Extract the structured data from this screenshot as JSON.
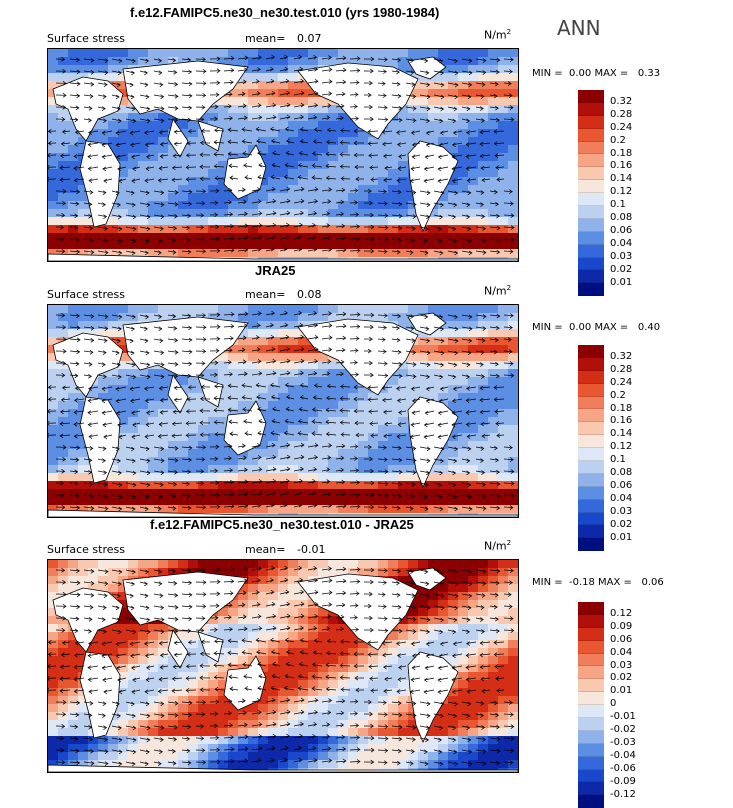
{
  "annual_label": "ANN",
  "units_text": "N/m",
  "units_exp": "2",
  "panels": [
    {
      "title": "f.e12.FAMIPC5.ne30_ne30.test.010 (yrs 1980-1984)",
      "var_label": "Surface stress",
      "mean_label": "mean=",
      "mean_value": "0.07",
      "min_label": "MIN =",
      "min_value": "0.00",
      "max_label": "MAX =",
      "max_value": "0.33",
      "colorbar": [
        "0.32",
        "0.28",
        "0.24",
        "0.2",
        "0.18",
        "0.16",
        "0.14",
        "0.12",
        "0.1",
        "0.08",
        "0.06",
        "0.04",
        "0.03",
        "0.02",
        "0.01"
      ],
      "colors": [
        "#8b0000",
        "#b30f0a",
        "#d42e16",
        "#e85730",
        "#f07e5a",
        "#f6a585",
        "#f9c8b0",
        "#f6e6dc",
        "#dde7f5",
        "#bcd1f0",
        "#8fb2ea",
        "#5c8ee3",
        "#3569db",
        "#1a48cc",
        "#0d28a8",
        "#000f80"
      ]
    },
    {
      "title": "JRA25",
      "var_label": "Surface stress",
      "mean_label": "mean=",
      "mean_value": "0.08",
      "min_label": "MIN =",
      "min_value": "0.00",
      "max_label": "MAX =",
      "max_value": "0.40",
      "colorbar": [
        "0.32",
        "0.28",
        "0.24",
        "0.2",
        "0.18",
        "0.16",
        "0.14",
        "0.12",
        "0.1",
        "0.08",
        "0.06",
        "0.04",
        "0.03",
        "0.02",
        "0.01"
      ],
      "colors": [
        "#8b0000",
        "#b30f0a",
        "#d42e16",
        "#e85730",
        "#f07e5a",
        "#f6a585",
        "#f9c8b0",
        "#f6e6dc",
        "#dde7f5",
        "#bcd1f0",
        "#8fb2ea",
        "#5c8ee3",
        "#3569db",
        "#1a48cc",
        "#0d28a8",
        "#000f80"
      ]
    },
    {
      "title": "f.e12.FAMIPC5.ne30_ne30.test.010 - JRA25",
      "var_label": "Surface stress",
      "mean_label": "mean=",
      "mean_value": "-0.01",
      "min_label": "MIN =",
      "min_value": "-0.18",
      "max_label": "MAX =",
      "max_value": "0.06",
      "colorbar": [
        "0.12",
        "0.09",
        "0.06",
        "0.04",
        "0.03",
        "0.02",
        "0.01",
        "0",
        "-0.01",
        "-0.02",
        "-0.03",
        "-0.04",
        "-0.06",
        "-0.09",
        "-0.12"
      ],
      "colors": [
        "#8b0000",
        "#b30f0a",
        "#d42e16",
        "#e85730",
        "#f07e5a",
        "#f6a585",
        "#f9c8b0",
        "#f6e6dc",
        "#dde7f5",
        "#bcd1f0",
        "#8fb2ea",
        "#5c8ee3",
        "#3569db",
        "#1a48cc",
        "#0d28a8",
        "#000f80"
      ]
    }
  ]
}
